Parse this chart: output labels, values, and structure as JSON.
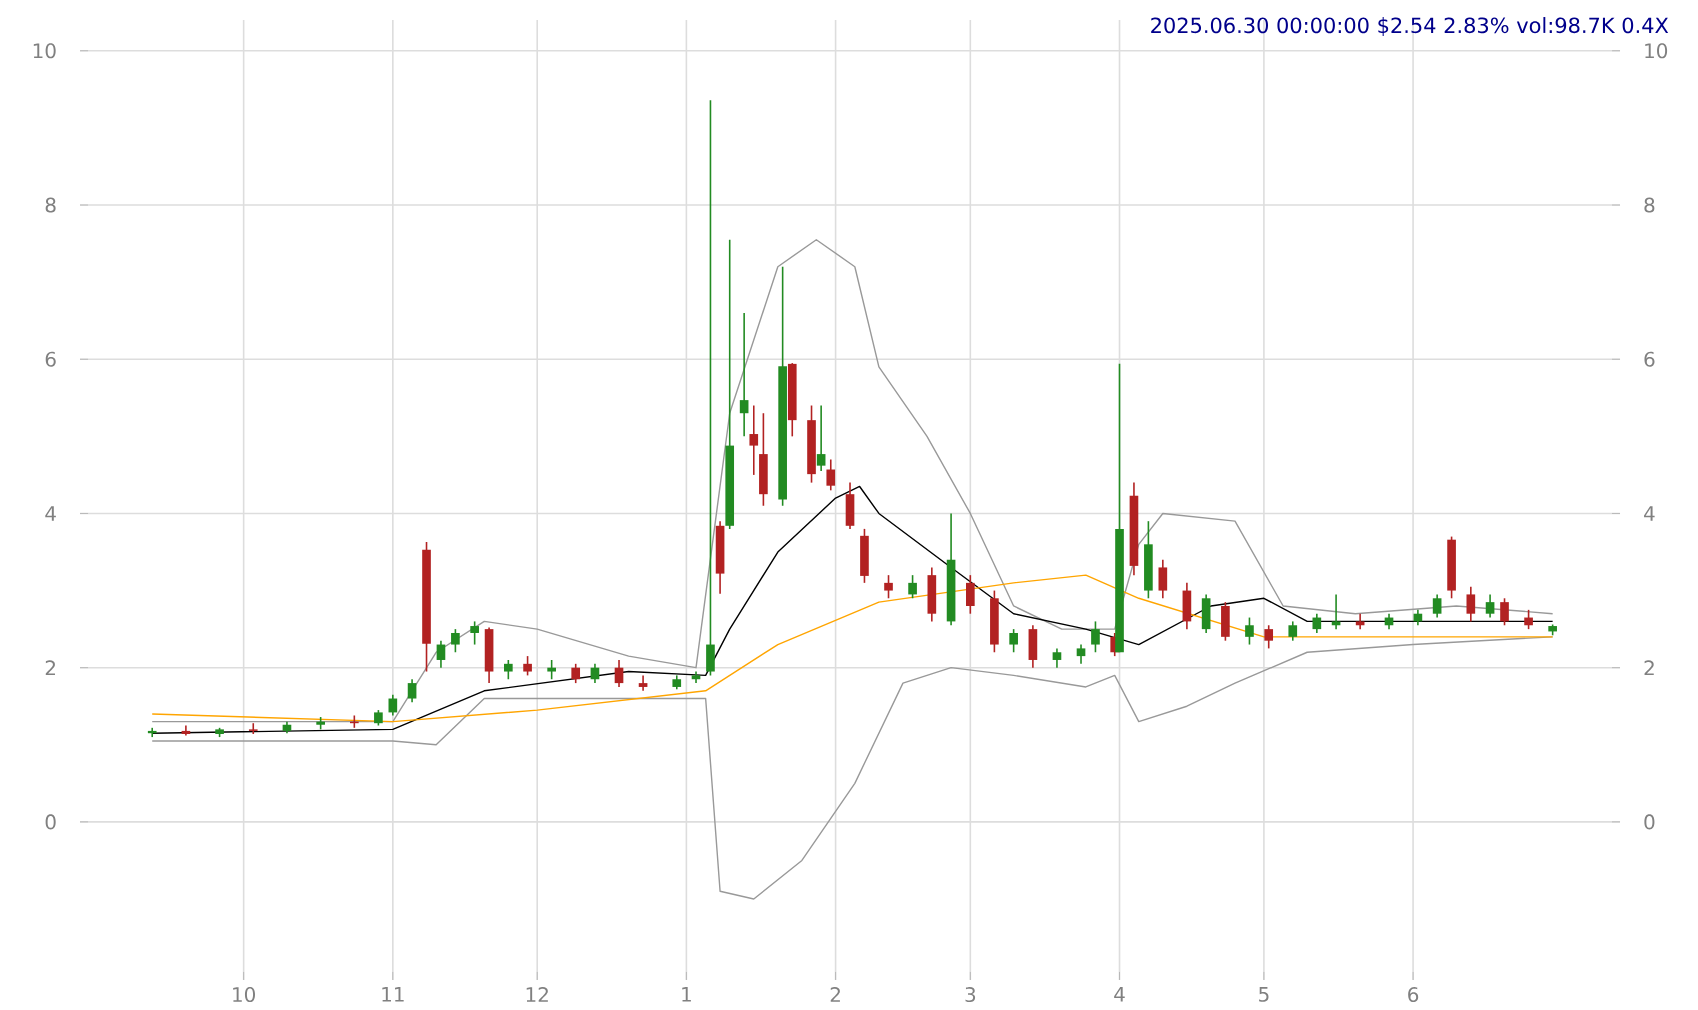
{
  "chart_data": {
    "type": "candlestick",
    "title": "2025.06.30 00:00:00 $2.54 2.83% vol:98.7K 0.4X",
    "x": [
      "2024-09-12",
      "2024-09-19",
      "2024-09-26",
      "2024-10-03",
      "2024-10-10",
      "2024-10-17",
      "2024-10-24",
      "2024-10-29",
      "2024-11-01",
      "2024-11-05",
      "2024-11-08",
      "2024-11-11",
      "2024-11-14",
      "2024-11-18",
      "2024-11-21",
      "2024-11-25",
      "2024-11-29",
      "2024-12-04",
      "2024-12-09",
      "2024-12-13",
      "2024-12-18",
      "2024-12-23",
      "2024-12-30",
      "2025-01-03",
      "2025-01-06",
      "2025-01-08",
      "2025-01-10",
      "2025-01-13",
      "2025-01-15",
      "2025-01-17",
      "2025-01-21",
      "2025-01-23",
      "2025-01-27",
      "2025-01-29",
      "2025-01-31",
      "2025-02-04",
      "2025-02-07",
      "2025-02-12",
      "2025-02-17",
      "2025-02-21",
      "2025-02-25",
      "2025-03-01",
      "2025-03-06",
      "2025-03-10",
      "2025-03-14",
      "2025-03-19",
      "2025-03-24",
      "2025-03-27",
      "2025-03-31",
      "2025-04-01",
      "2025-04-04",
      "2025-04-07",
      "2025-04-10",
      "2025-04-15",
      "2025-04-19",
      "2025-04-23",
      "2025-04-28",
      "2025-05-02",
      "2025-05-07",
      "2025-05-12",
      "2025-05-16",
      "2025-05-21",
      "2025-05-27",
      "2025-06-02",
      "2025-06-06",
      "2025-06-09",
      "2025-06-13",
      "2025-06-17",
      "2025-06-20",
      "2025-06-25",
      "2025-06-30"
    ],
    "ohlc": [
      [
        1.15,
        1.22,
        1.1,
        1.18
      ],
      [
        1.18,
        1.25,
        1.12,
        1.14
      ],
      [
        1.14,
        1.22,
        1.1,
        1.2
      ],
      [
        1.2,
        1.28,
        1.14,
        1.18
      ],
      [
        1.18,
        1.3,
        1.15,
        1.26
      ],
      [
        1.26,
        1.36,
        1.2,
        1.3
      ],
      [
        1.3,
        1.38,
        1.22,
        1.28
      ],
      [
        1.28,
        1.45,
        1.25,
        1.42
      ],
      [
        1.42,
        1.65,
        1.38,
        1.6
      ],
      [
        1.6,
        1.85,
        1.55,
        1.8
      ],
      [
        3.53,
        3.63,
        1.95,
        2.31
      ],
      [
        2.1,
        2.35,
        2.0,
        2.3
      ],
      [
        2.3,
        2.5,
        2.2,
        2.45
      ],
      [
        2.45,
        2.6,
        2.3,
        2.54
      ],
      [
        2.5,
        2.52,
        1.8,
        1.95
      ],
      [
        1.95,
        2.1,
        1.85,
        2.05
      ],
      [
        2.05,
        2.15,
        1.9,
        1.95
      ],
      [
        1.95,
        2.1,
        1.85,
        2.0
      ],
      [
        2.0,
        2.05,
        1.8,
        1.85
      ],
      [
        1.85,
        2.05,
        1.8,
        2.0
      ],
      [
        2.0,
        2.1,
        1.75,
        1.8
      ],
      [
        1.8,
        1.9,
        1.7,
        1.75
      ],
      [
        1.75,
        1.9,
        1.72,
        1.85
      ],
      [
        1.85,
        1.95,
        1.8,
        1.9
      ],
      [
        1.95,
        9.36,
        1.9,
        2.3
      ],
      [
        3.84,
        3.9,
        2.96,
        3.22
      ],
      [
        3.84,
        7.55,
        3.8,
        4.88
      ],
      [
        5.3,
        6.6,
        5.0,
        5.47
      ],
      [
        5.03,
        5.4,
        4.5,
        4.88
      ],
      [
        4.77,
        5.3,
        4.1,
        4.25
      ],
      [
        4.18,
        7.2,
        4.1,
        5.91
      ],
      [
        5.94,
        5.95,
        5.0,
        5.21
      ],
      [
        5.21,
        5.4,
        4.4,
        4.51
      ],
      [
        4.62,
        5.4,
        4.55,
        4.77
      ],
      [
        4.57,
        4.7,
        4.3,
        4.36
      ],
      [
        4.25,
        4.4,
        3.8,
        3.84
      ],
      [
        3.71,
        3.8,
        3.1,
        3.19
      ],
      [
        3.1,
        3.2,
        2.9,
        3.0
      ],
      [
        2.95,
        3.2,
        2.9,
        3.1
      ],
      [
        3.2,
        3.3,
        2.6,
        2.7
      ],
      [
        2.6,
        4.0,
        2.55,
        3.4
      ],
      [
        3.1,
        3.2,
        2.7,
        2.8
      ],
      [
        2.9,
        3.0,
        2.2,
        2.3
      ],
      [
        2.3,
        2.5,
        2.2,
        2.45
      ],
      [
        2.5,
        2.55,
        2.0,
        2.1
      ],
      [
        2.1,
        2.25,
        2.0,
        2.2
      ],
      [
        2.15,
        2.3,
        2.05,
        2.25
      ],
      [
        2.3,
        2.6,
        2.2,
        2.5
      ],
      [
        2.4,
        2.45,
        2.15,
        2.2
      ],
      [
        2.2,
        5.94,
        2.2,
        3.8
      ],
      [
        4.23,
        4.4,
        3.2,
        3.32
      ],
      [
        3.0,
        3.9,
        2.9,
        3.6
      ],
      [
        3.3,
        3.4,
        2.9,
        3.0
      ],
      [
        3.0,
        3.1,
        2.5,
        2.6
      ],
      [
        2.5,
        2.95,
        2.45,
        2.9
      ],
      [
        2.8,
        2.85,
        2.35,
        2.4
      ],
      [
        2.4,
        2.65,
        2.3,
        2.55
      ],
      [
        2.5,
        2.55,
        2.25,
        2.35
      ],
      [
        2.4,
        2.6,
        2.35,
        2.55
      ],
      [
        2.5,
        2.7,
        2.45,
        2.65
      ],
      [
        2.55,
        2.95,
        2.5,
        2.6
      ],
      [
        2.6,
        2.7,
        2.5,
        2.55
      ],
      [
        2.55,
        2.7,
        2.5,
        2.65
      ],
      [
        2.6,
        2.75,
        2.55,
        2.7
      ],
      [
        2.7,
        2.95,
        2.65,
        2.9
      ],
      [
        3.66,
        3.7,
        2.9,
        3.0
      ],
      [
        2.95,
        3.05,
        2.6,
        2.7
      ],
      [
        2.7,
        2.95,
        2.65,
        2.85
      ],
      [
        2.85,
        2.9,
        2.55,
        2.6
      ],
      [
        2.65,
        2.75,
        2.5,
        2.55
      ],
      [
        2.47,
        2.56,
        2.42,
        2.54
      ]
    ],
    "series": [
      {
        "type": "line",
        "color": "#999999",
        "x": [
          "2024-09-12",
          "2024-10-01",
          "2024-11-01",
          "2024-11-10",
          "2024-11-20",
          "2024-12-01",
          "2024-12-20",
          "2025-01-03",
          "2025-01-10",
          "2025-01-20",
          "2025-01-28",
          "2025-02-05",
          "2025-02-10",
          "2025-02-20",
          "2025-03-01",
          "2025-03-10",
          "2025-03-20",
          "2025-03-31",
          "2025-04-05",
          "2025-04-10",
          "2025-04-25",
          "2025-05-05",
          "2025-05-20",
          "2025-06-10",
          "2025-06-30"
        ],
        "values": [
          1.3,
          1.3,
          1.3,
          2.2,
          2.6,
          2.5,
          2.15,
          2.0,
          5.3,
          7.2,
          7.55,
          7.2,
          5.9,
          5.0,
          4.0,
          2.8,
          2.5,
          2.5,
          3.6,
          4.0,
          3.9,
          2.8,
          2.7,
          2.8,
          2.7
        ]
      },
      {
        "type": "line",
        "color": "#999999",
        "x": [
          "2024-09-12",
          "2024-11-01",
          "2024-11-10",
          "2024-11-20",
          "2024-12-15",
          "2025-01-05",
          "2025-01-08",
          "2025-01-15",
          "2025-01-25",
          "2025-02-05",
          "2025-02-15",
          "2025-02-25",
          "2025-03-10",
          "2025-03-25",
          "2025-03-31",
          "2025-04-05",
          "2025-04-15",
          "2025-04-25",
          "2025-05-10",
          "2025-06-01",
          "2025-06-30"
        ],
        "values": [
          1.05,
          1.05,
          1.0,
          1.6,
          1.6,
          1.6,
          -0.9,
          -1.0,
          -0.5,
          0.5,
          1.8,
          2.0,
          1.9,
          1.75,
          1.9,
          1.3,
          1.5,
          1.8,
          2.2,
          2.3,
          2.4
        ]
      },
      {
        "type": "line",
        "color": "#000000",
        "x": [
          "2024-09-12",
          "2024-11-01",
          "2024-11-20",
          "2024-12-20",
          "2025-01-05",
          "2025-01-10",
          "2025-01-20",
          "2025-02-01",
          "2025-02-06",
          "2025-02-10",
          "2025-02-25",
          "2025-03-10",
          "2025-03-25",
          "2025-04-05",
          "2025-04-20",
          "2025-05-01",
          "2025-05-10",
          "2025-06-01",
          "2025-06-30"
        ],
        "values": [
          1.15,
          1.2,
          1.7,
          1.95,
          1.9,
          2.5,
          3.5,
          4.2,
          4.35,
          4.0,
          3.3,
          2.7,
          2.5,
          2.3,
          2.8,
          2.9,
          2.6,
          2.6,
          2.6
        ]
      },
      {
        "type": "line",
        "color": "#ffa500",
        "x": [
          "2024-09-12",
          "2024-11-01",
          "2024-12-01",
          "2025-01-05",
          "2025-01-20",
          "2025-02-10",
          "2025-03-10",
          "2025-03-25",
          "2025-04-05",
          "2025-05-01",
          "2025-06-30"
        ],
        "values": [
          1.4,
          1.3,
          1.45,
          1.7,
          2.3,
          2.85,
          3.1,
          3.2,
          2.9,
          2.4,
          2.4
        ]
      }
    ],
    "xlim": [
      "2024-08-28",
      "2025-07-14"
    ],
    "xticks": [
      {
        "value": "2024-10-01",
        "label": "10"
      },
      {
        "value": "2024-11-01",
        "label": "11"
      },
      {
        "value": "2024-12-01",
        "label": "12"
      },
      {
        "value": "2025-01-01",
        "label": "1"
      },
      {
        "value": "2025-02-01",
        "label": "2"
      },
      {
        "value": "2025-03-01",
        "label": "3"
      },
      {
        "value": "2025-04-01",
        "label": "4"
      },
      {
        "value": "2025-05-01",
        "label": "5"
      },
      {
        "value": "2025-06-01",
        "label": "6"
      }
    ],
    "ylim": [
      -2.05,
      10.4
    ],
    "yticks": [
      0,
      2,
      4,
      6,
      8,
      10
    ],
    "y2lim": [
      -2.05,
      10.4
    ],
    "y2ticks": [
      0,
      2,
      4,
      6,
      8,
      10
    ],
    "grid": true
  }
}
